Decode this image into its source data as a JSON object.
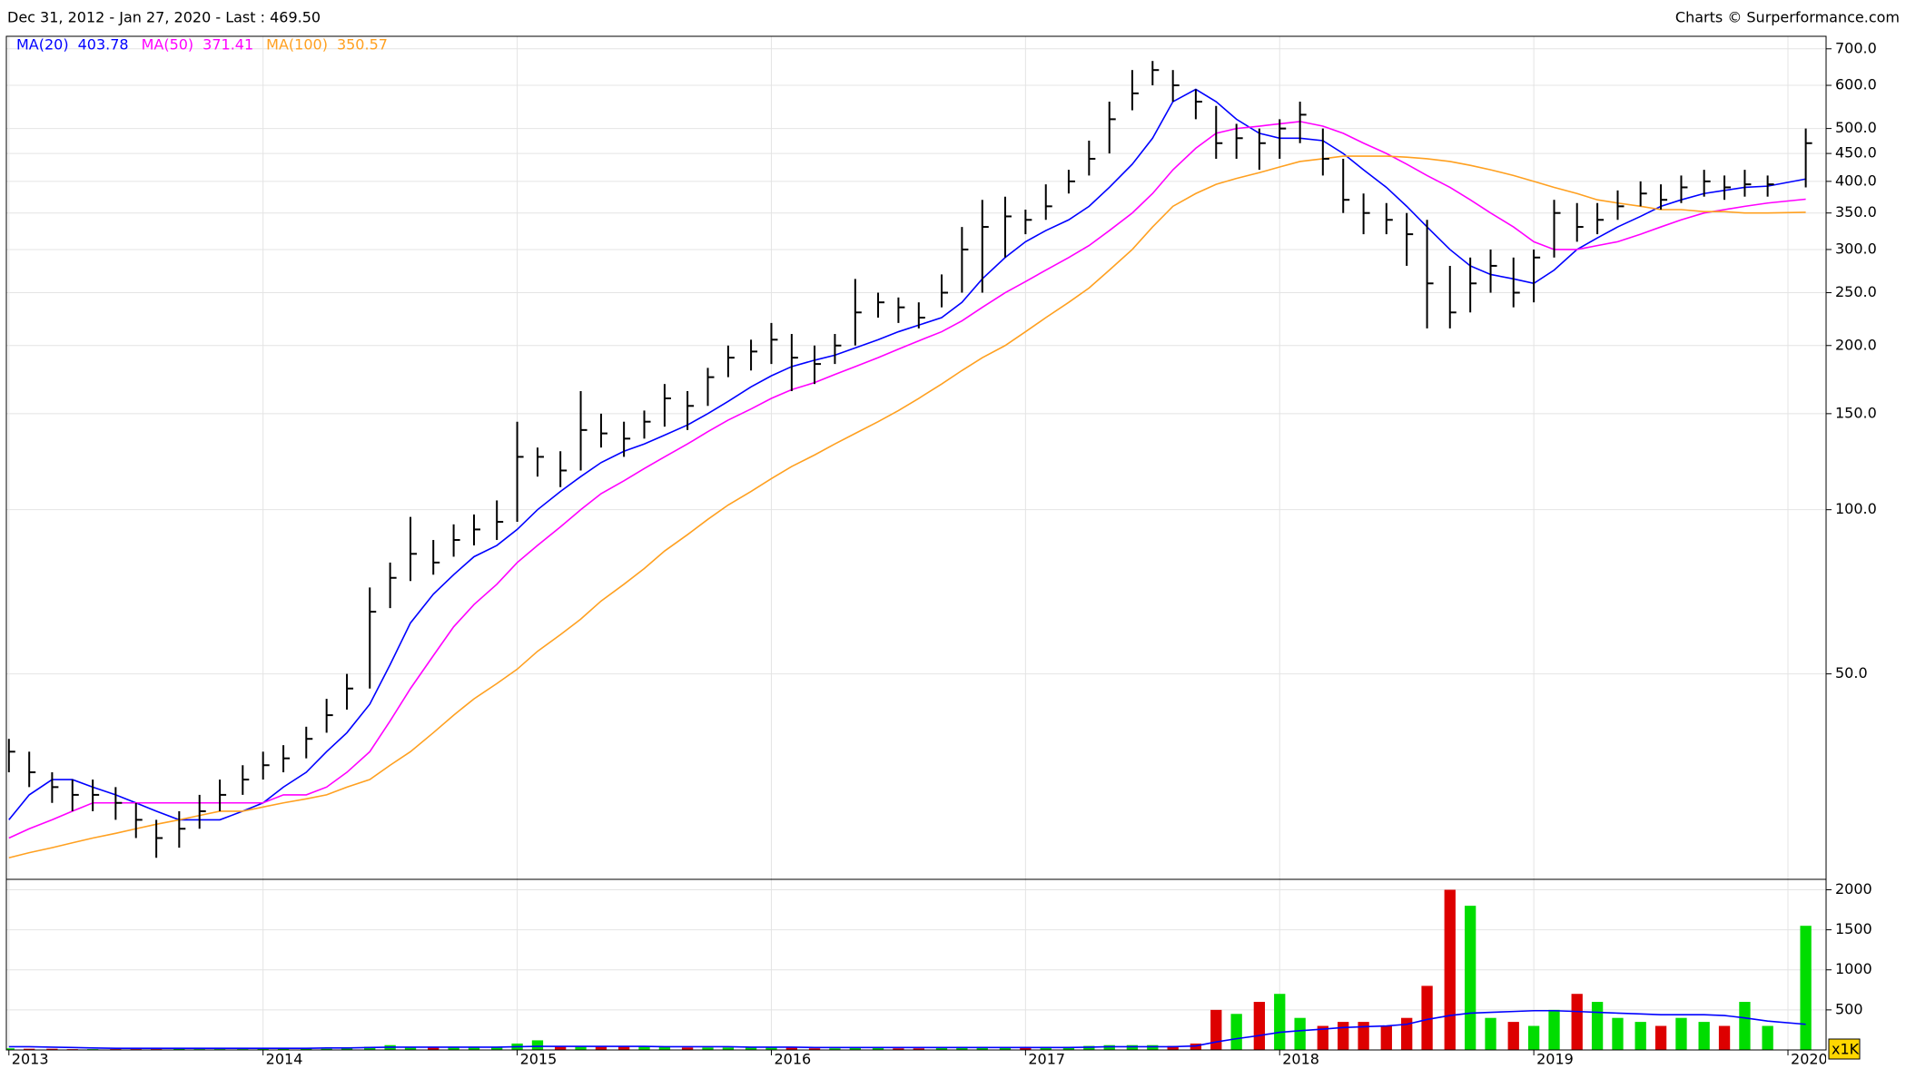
{
  "header": {
    "range": "Dec 31, 2012 - Jan 27, 2020 - Last : 469.50",
    "credit": "Charts © Surperformance.com"
  },
  "chart_data": {
    "type": "ohlc",
    "log_y": true,
    "grid": true,
    "x": [
      2013.0,
      2013.08,
      2013.17,
      2013.25,
      2013.33,
      2013.42,
      2013.5,
      2013.58,
      2013.67,
      2013.75,
      2013.83,
      2013.92,
      2014.0,
      2014.08,
      2014.17,
      2014.25,
      2014.33,
      2014.42,
      2014.5,
      2014.58,
      2014.67,
      2014.75,
      2014.83,
      2014.92,
      2015.0,
      2015.08,
      2015.17,
      2015.25,
      2015.33,
      2015.42,
      2015.5,
      2015.58,
      2015.67,
      2015.75,
      2015.83,
      2015.92,
      2016.0,
      2016.08,
      2016.17,
      2016.25,
      2016.33,
      2016.42,
      2016.5,
      2016.58,
      2016.67,
      2016.75,
      2016.83,
      2016.92,
      2017.0,
      2017.08,
      2017.17,
      2017.25,
      2017.33,
      2017.42,
      2017.5,
      2017.58,
      2017.67,
      2017.75,
      2017.83,
      2017.92,
      2018.0,
      2018.08,
      2018.17,
      2018.25,
      2018.33,
      2018.42,
      2018.5,
      2018.58,
      2018.67,
      2018.75,
      2018.83,
      2018.92,
      2019.0,
      2019.08,
      2019.17,
      2019.25,
      2019.33,
      2019.42,
      2019.5,
      2019.58,
      2019.67,
      2019.75,
      2019.83,
      2019.92,
      2020.07
    ],
    "high": [
      38,
      36,
      33,
      32,
      32,
      31,
      29,
      27,
      28,
      30,
      32,
      34,
      36,
      37,
      40,
      45,
      50,
      72,
      80,
      97,
      88,
      94,
      98,
      104,
      145,
      130,
      128,
      165,
      150,
      145,
      152,
      170,
      165,
      182,
      200,
      205,
      220,
      210,
      200,
      210,
      265,
      250,
      245,
      240,
      270,
      330,
      370,
      375,
      355,
      395,
      420,
      475,
      560,
      640,
      665,
      640,
      590,
      550,
      510,
      500,
      520,
      560,
      500,
      440,
      380,
      365,
      350,
      340,
      280,
      290,
      300,
      290,
      300,
      370,
      365,
      365,
      385,
      400,
      395,
      410,
      420,
      410,
      420,
      410,
      500
    ],
    "low": [
      33,
      31,
      29,
      28,
      28,
      27,
      25,
      23,
      24,
      26,
      28,
      30,
      32,
      33,
      35,
      39,
      43,
      47,
      66,
      74,
      76,
      82,
      86,
      88,
      95,
      115,
      110,
      118,
      130,
      125,
      135,
      142,
      140,
      155,
      175,
      180,
      185,
      165,
      170,
      185,
      200,
      225,
      220,
      215,
      235,
      250,
      250,
      290,
      320,
      340,
      380,
      410,
      450,
      540,
      600,
      560,
      520,
      440,
      440,
      420,
      440,
      470,
      410,
      350,
      320,
      320,
      280,
      215,
      215,
      230,
      250,
      235,
      240,
      290,
      310,
      320,
      340,
      360,
      355,
      365,
      375,
      370,
      375,
      375,
      390
    ],
    "close": [
      36,
      33,
      31,
      30,
      30,
      29,
      27,
      25,
      26,
      28,
      30,
      32,
      34,
      35,
      38,
      42,
      47,
      65,
      75,
      83,
      80,
      88,
      92,
      95,
      125,
      125,
      118,
      140,
      138,
      135,
      145,
      160,
      155,
      175,
      190,
      195,
      205,
      190,
      185,
      200,
      230,
      240,
      235,
      225,
      250,
      300,
      330,
      345,
      340,
      360,
      400,
      440,
      520,
      580,
      640,
      600,
      560,
      470,
      480,
      470,
      500,
      530,
      440,
      370,
      350,
      340,
      320,
      260,
      230,
      260,
      280,
      250,
      290,
      350,
      330,
      340,
      360,
      380,
      370,
      390,
      400,
      390,
      395,
      395,
      470
    ],
    "bar_color": "#000000",
    "series": [
      {
        "name": "MA(20)",
        "last": 403.78,
        "color": "#0000ff",
        "values": [
          27,
          30,
          32,
          32,
          31,
          30,
          29,
          28,
          27,
          27,
          27,
          28,
          29,
          31,
          33,
          36,
          39,
          44,
          52,
          62,
          70,
          76,
          82,
          86,
          92,
          100,
          108,
          115,
          122,
          128,
          132,
          137,
          143,
          150,
          158,
          168,
          176,
          183,
          188,
          192,
          198,
          205,
          212,
          218,
          225,
          240,
          265,
          290,
          310,
          325,
          340,
          360,
          390,
          430,
          480,
          560,
          590,
          560,
          520,
          490,
          480,
          480,
          475,
          450,
          420,
          390,
          360,
          330,
          300,
          280,
          270,
          265,
          260,
          275,
          300,
          315,
          330,
          345,
          360,
          370,
          380,
          385,
          390,
          392,
          404
        ]
      },
      {
        "name": "MA(50)",
        "last": 371.41,
        "color": "#ff00ff",
        "values": [
          25,
          26,
          27,
          28,
          29,
          29,
          29,
          29,
          29,
          29,
          29,
          29,
          29,
          30,
          30,
          31,
          33,
          36,
          41,
          47,
          54,
          61,
          67,
          73,
          80,
          86,
          93,
          100,
          107,
          113,
          119,
          125,
          132,
          139,
          146,
          153,
          160,
          166,
          171,
          177,
          183,
          190,
          197,
          204,
          212,
          222,
          235,
          250,
          262,
          275,
          290,
          305,
          325,
          350,
          380,
          420,
          460,
          490,
          500,
          505,
          510,
          515,
          505,
          490,
          470,
          450,
          430,
          410,
          390,
          370,
          350,
          330,
          310,
          300,
          300,
          305,
          310,
          320,
          330,
          340,
          350,
          355,
          360,
          365,
          371
        ]
      },
      {
        "name": "MA(100)",
        "last": 350.57,
        "color": "#ffa020",
        "values": [
          23,
          23.5,
          24,
          24.5,
          25,
          25.5,
          26,
          26.5,
          27,
          27.5,
          28,
          28,
          28.5,
          29,
          29.5,
          30,
          31,
          32,
          34,
          36,
          39,
          42,
          45,
          48,
          51,
          55,
          59,
          63,
          68,
          73,
          78,
          84,
          90,
          96,
          102,
          108,
          114,
          120,
          126,
          132,
          138,
          145,
          152,
          160,
          170,
          180,
          190,
          200,
          212,
          225,
          240,
          255,
          275,
          300,
          330,
          360,
          380,
          395,
          405,
          415,
          425,
          435,
          440,
          445,
          445,
          445,
          443,
          440,
          435,
          428,
          420,
          410,
          400,
          390,
          380,
          370,
          365,
          360,
          355,
          355,
          352,
          352,
          350,
          350,
          351
        ]
      }
    ],
    "xlim": [
      2012.99,
      2020.15
    ],
    "xticks": [
      2013,
      2014,
      2015,
      2016,
      2017,
      2018,
      2019,
      2020
    ],
    "ylim": [
      21,
      738
    ],
    "yticks": [
      {
        "value": 50,
        "label": "50.0"
      },
      {
        "value": 100,
        "label": "100.0"
      },
      {
        "value": 150,
        "label": "150.0"
      },
      {
        "value": 200,
        "label": "200.0"
      },
      {
        "value": 250,
        "label": "250.0"
      },
      {
        "value": 300,
        "label": "300.0"
      },
      {
        "value": 350,
        "label": "350.0"
      },
      {
        "value": 400,
        "label": "400.0"
      },
      {
        "value": 450,
        "label": "450.0"
      },
      {
        "value": 500,
        "label": "500.0"
      },
      {
        "value": 600,
        "label": "600.0"
      },
      {
        "value": 700,
        "label": "700.0"
      }
    ],
    "volume": {
      "values": [
        20,
        15,
        15,
        10,
        10,
        10,
        10,
        10,
        15,
        10,
        10,
        10,
        15,
        15,
        20,
        15,
        20,
        40,
        60,
        40,
        30,
        30,
        30,
        30,
        80,
        120,
        40,
        40,
        50,
        40,
        40,
        40,
        30,
        30,
        30,
        30,
        30,
        30,
        20,
        20,
        30,
        30,
        20,
        20,
        30,
        40,
        40,
        30,
        40,
        40,
        40,
        50,
        60,
        60,
        60,
        50,
        80,
        500,
        450,
        600,
        700,
        400,
        300,
        350,
        350,
        300,
        400,
        800,
        2000,
        1800,
        400,
        350,
        300,
        500,
        700,
        600,
        400,
        350,
        300,
        400,
        350,
        300,
        600,
        300,
        1550
      ],
      "ma": [
        40,
        40,
        35,
        30,
        25,
        20,
        20,
        20,
        20,
        20,
        20,
        20,
        20,
        20,
        20,
        25,
        25,
        30,
        35,
        35,
        35,
        35,
        35,
        35,
        40,
        45,
        45,
        45,
        45,
        45,
        45,
        40,
        40,
        40,
        40,
        35,
        35,
        35,
        30,
        30,
        30,
        30,
        30,
        30,
        30,
        30,
        30,
        30,
        30,
        30,
        30,
        35,
        40,
        40,
        40,
        40,
        50,
        100,
        140,
        180,
        220,
        240,
        260,
        280,
        290,
        300,
        320,
        380,
        430,
        460,
        470,
        480,
        490,
        490,
        480,
        470,
        460,
        450,
        440,
        440,
        440,
        430,
        400,
        360,
        320
      ],
      "ma_color": "#0000ff",
      "up_color": "#00dd00",
      "down_color": "#dd0000",
      "ylim": [
        0,
        2130
      ],
      "yticks": [
        500,
        1000,
        1500,
        2000
      ],
      "unit_label": "x1K"
    }
  }
}
